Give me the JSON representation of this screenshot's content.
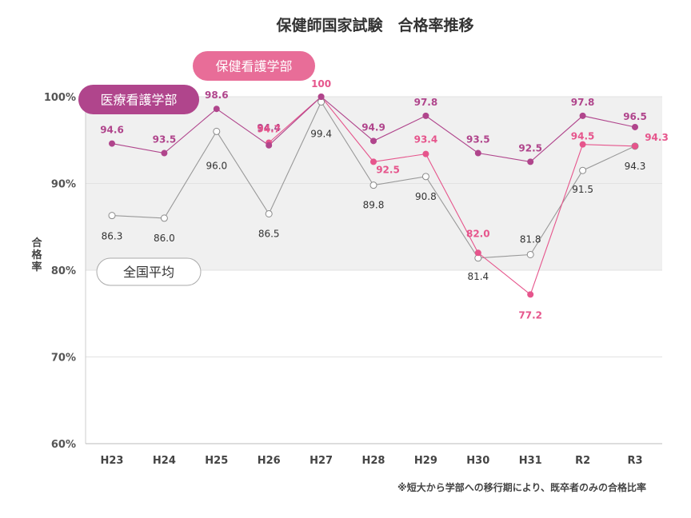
{
  "chart_data": {
    "type": "line",
    "title": "保健師国家試験　合格率推移",
    "ylabel": "合格率",
    "xlabel": "",
    "ylim": [
      60,
      100
    ],
    "y_ticks": [
      "60%",
      "70%",
      "80%",
      "90%",
      "100%"
    ],
    "y_tick_values": [
      60,
      70,
      80,
      90,
      100
    ],
    "highlight_band": [
      80,
      100
    ],
    "categories": [
      "H23",
      "H24",
      "H25",
      "H26",
      "H27",
      "H28",
      "H29",
      "H30",
      "H31",
      "R2",
      "R3"
    ],
    "series": [
      {
        "name": "医療看護学部",
        "color": "#b0458c",
        "values": [
          94.6,
          93.5,
          98.6,
          94.4,
          100,
          94.9,
          97.8,
          93.5,
          92.5,
          97.8,
          96.5
        ],
        "labels": [
          "94.6",
          "93.5",
          "98.6",
          "94.4",
          "",
          "94.9",
          "97.8",
          "93.5",
          "92.5",
          "97.8",
          "96.5"
        ]
      },
      {
        "name": "保健看護学部",
        "color": "#e6558c",
        "values": [
          null,
          null,
          null,
          94.7,
          100,
          92.5,
          93.4,
          82.0,
          77.2,
          94.5,
          94.3
        ],
        "labels": [
          "",
          "",
          "",
          "94.7",
          "100",
          "92.5",
          "93.4",
          "82.0",
          "77.2",
          "94.5",
          "94.3"
        ]
      },
      {
        "name": "全国平均",
        "color": "#999999",
        "values": [
          86.3,
          86.0,
          96.0,
          86.5,
          99.4,
          89.8,
          90.8,
          81.4,
          81.8,
          91.5,
          94.3
        ],
        "labels": [
          "86.3",
          "86.0",
          "96.0",
          "86.5",
          "99.4",
          "89.8",
          "90.8",
          "81.4",
          "81.8",
          "91.5",
          "94.3"
        ]
      }
    ],
    "note": "※短大から学部への移行期により、既卒者のみの合格比率"
  }
}
